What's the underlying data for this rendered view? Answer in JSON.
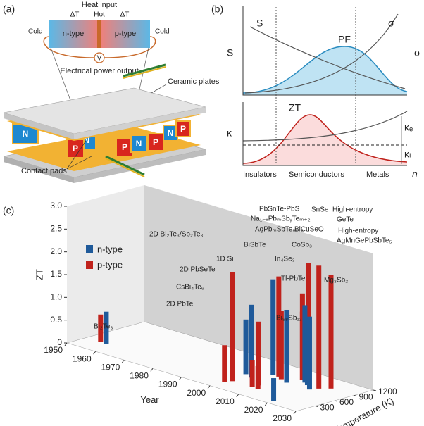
{
  "panel_a": {
    "label": "(a)",
    "heat_input": "Heat input",
    "delta_t_left": "ΔT",
    "hot": "Hot",
    "delta_t_right": "ΔT",
    "cold_left": "Cold",
    "n_type": "n-type",
    "p_type": "p-type",
    "cold_right": "Cold",
    "voltmeter": "V",
    "power_output": "Electrical power output",
    "ceramic_plates": "Ceramic plates",
    "contact_pads": "Contact pads",
    "legs": [
      "N",
      "N",
      "P",
      "P",
      "N",
      "P",
      "N",
      "P"
    ]
  },
  "panel_b": {
    "label": "(b)",
    "s_curve": "S",
    "sigma_curve": "σ",
    "pf_curve": "PF",
    "left_axis": "S",
    "right_axis": "σ",
    "zt_curve": "ZT",
    "kappa_axis": "κ",
    "kappa_e": "κₑ",
    "kappa_l": "κₗ",
    "insulators": "Insulators",
    "semiconductors": "Semiconductors",
    "metals": "Metals",
    "x_axis": "n"
  },
  "chart_data": {
    "type": "bar3d",
    "label": "(c)",
    "zlabel": "ZT",
    "xlabel": "Year",
    "ylabel": "Temperature (K)",
    "xlim": [
      1950,
      2030
    ],
    "xticks": [
      1950,
      1960,
      1970,
      1980,
      1990,
      2000,
      2010,
      2020,
      2030
    ],
    "ylim": [
      0,
      1200
    ],
    "yticks": [
      300,
      600,
      900,
      1200
    ],
    "zlim": [
      0,
      3
    ],
    "zticks": [
      0,
      0.5,
      {
        "value": 1,
        "label": "1.0"
      },
      1.5,
      {
        "value": 2,
        "label": "2.0"
      },
      2.5,
      {
        "value": 3,
        "label": "3.0"
      }
    ],
    "series": [
      {
        "name": "n-type",
        "color": "#1f5a9a",
        "year": [
          1957,
          1999,
          2002,
          2004,
          2011,
          2020,
          2014,
          2016,
          2019
        ],
        "temperature": [
          300,
          600,
          550,
          800,
          700,
          100,
          850,
          800,
          700
        ],
        "values": [
          0.7,
          1.2,
          1.6,
          2.1,
          1.6,
          0.5,
          1.7,
          1.4,
          1.6
        ]
      },
      {
        "name": "p-type",
        "color": "#c0221c",
        "year": [
          1955,
          2001,
          2000,
          2008,
          2010,
          2008,
          2006,
          2012,
          2008,
          2012,
          2014,
          2020,
          2022
        ],
        "temperature": [
          300,
          300,
          225,
          300,
          300,
          400,
          800,
          900,
          750,
          900,
          900,
          800,
          900
        ],
        "values": [
          0.6,
          2.4,
          0.8,
          0.6,
          0.5,
          1.4,
          2.2,
          1.9,
          1.5,
          1.5,
          2.6,
          2.7,
          2.5
        ]
      }
    ],
    "annotations": [
      "Bi₂Te₃",
      "2D PbTe",
      "CsBi₄Te₆",
      "2D Bi₂Te₃/Sb₂Te₃",
      "2D PbSeTe",
      "1D Si",
      "BiSbTe",
      "Na₁₋ₓPbₘSbᵧTeₘ₊₂",
      "AgPbₘSbTeₘ₊₂",
      "PbSnTe-PbS",
      "In₄Se₃",
      "Tl-PbTe",
      "Bi₈₈Sb₁₂",
      "BiCuSeO",
      "CoSb₃",
      "SnSe",
      "High-entropy",
      "GeTe",
      "High-entropy",
      "AgMnGePbSbTe₅",
      "Mg₃Sb₂"
    ]
  }
}
